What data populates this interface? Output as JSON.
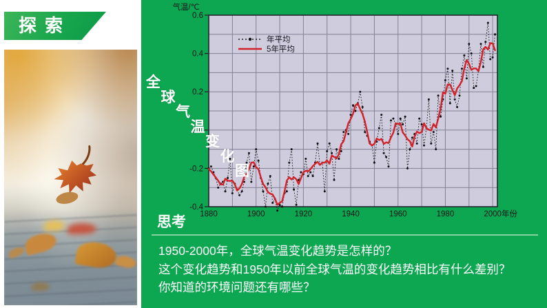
{
  "banner": {
    "label": "探索"
  },
  "vertical_title": {
    "text": "全球气温变化图"
  },
  "think": {
    "heading": "思考",
    "questions": [
      "1950-2000年，全球气温变化趋势是怎样的？",
      "这个变化趋势和1950年以前全球气温的变化趋势相比有什么差别？",
      "你知道的环境问题还有哪些？"
    ]
  },
  "colors": {
    "slide_green": "#0CA750",
    "accent_red": "#D22128",
    "plot_bg": "#CFCCDD",
    "grid_line": "#6E6E84",
    "divider": "#86D3A0"
  },
  "chart_data": {
    "type": "line",
    "title": "全球气温变化图",
    "ylabel": "气温/℃",
    "xlabel": "年份",
    "xlim": [
      1880,
      2002
    ],
    "ylim": [
      -0.4,
      0.6
    ],
    "x_ticks": [
      1880,
      1900,
      1920,
      1940,
      1960,
      1980,
      2000
    ],
    "y_ticks": [
      0.6,
      0.4,
      0.2,
      0,
      -0.2,
      -0.4
    ],
    "grid": {
      "x_step_years": 10,
      "y_step": 0.1
    },
    "legend": {
      "position": "top-left-inside",
      "entries": [
        "年平均",
        "5年平均"
      ]
    },
    "series": [
      {
        "name": "年平均",
        "style": "dotted-black-with-dot-markers",
        "x_start": 1880,
        "x_step": 1,
        "values": [
          -0.2,
          -0.19,
          -0.22,
          -0.25,
          -0.3,
          -0.28,
          -0.27,
          -0.32,
          -0.25,
          -0.15,
          -0.33,
          -0.28,
          -0.31,
          -0.34,
          -0.32,
          -0.27,
          -0.17,
          -0.12,
          -0.27,
          -0.19,
          -0.1,
          -0.16,
          -0.25,
          -0.32,
          -0.4,
          -0.28,
          -0.24,
          -0.38,
          -0.36,
          -0.42,
          -0.39,
          -0.4,
          -0.33,
          -0.32,
          -0.17,
          -0.1,
          -0.31,
          -0.39,
          -0.26,
          -0.22,
          -0.23,
          -0.15,
          -0.24,
          -0.22,
          -0.24,
          -0.17,
          -0.07,
          -0.18,
          -0.17,
          -0.32,
          -0.11,
          -0.07,
          -0.12,
          -0.26,
          -0.1,
          -0.15,
          -0.11,
          -0.01,
          0.0,
          -0.02,
          0.08,
          0.13,
          0.1,
          0.14,
          0.2,
          0.12,
          -0.01,
          -0.03,
          -0.06,
          -0.08,
          -0.17,
          -0.06,
          0.01,
          0.08,
          -0.12,
          -0.14,
          -0.19,
          0.05,
          0.06,
          0.03,
          -0.02,
          0.06,
          0.03,
          0.07,
          -0.2,
          -0.1,
          -0.04,
          -0.02,
          -0.07,
          0.06,
          0.03,
          -0.08,
          0.01,
          0.16,
          -0.07,
          -0.01,
          -0.1,
          0.18,
          0.07,
          0.16,
          0.26,
          0.32,
          0.14,
          0.31,
          0.16,
          0.12,
          0.18,
          0.32,
          0.39,
          0.27,
          0.45,
          0.4,
          0.22,
          0.23,
          0.31,
          0.45,
          0.33,
          0.46,
          0.56,
          0.37,
          0.38,
          0.5
        ]
      },
      {
        "name": "5年平均",
        "style": "solid-red",
        "derived_from": "年平均",
        "smoothing": "5-year centered running mean"
      }
    ]
  }
}
